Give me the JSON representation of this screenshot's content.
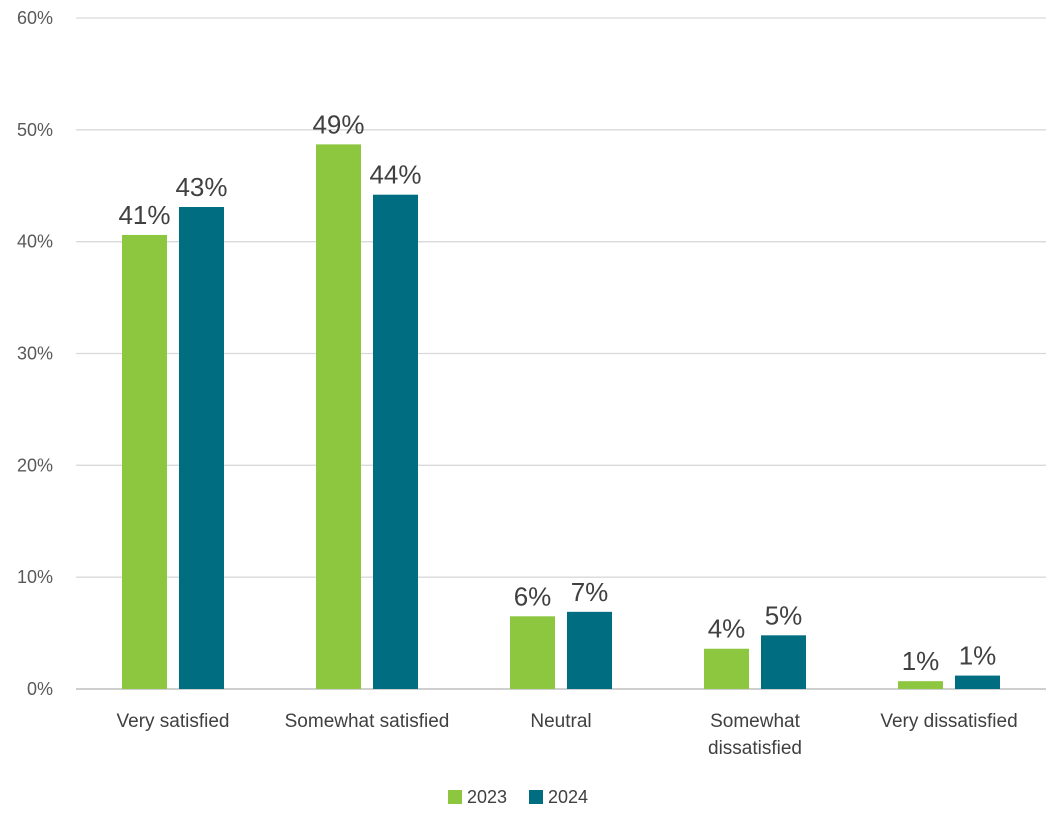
{
  "chart_data": {
    "type": "bar",
    "categories": [
      "Very satisfied",
      "Somewhat satisfied",
      "Neutral",
      "Somewhat dissatisfied",
      "Very dissatisfied"
    ],
    "category_lines": [
      [
        "Very satisfied"
      ],
      [
        "Somewhat satisfied"
      ],
      [
        "Neutral"
      ],
      [
        "Somewhat",
        "dissatisfied"
      ],
      [
        "Very dissatisfied"
      ]
    ],
    "series": [
      {
        "name": "2023",
        "color": "#8dc63f",
        "values": [
          40.6,
          48.7,
          6.5,
          3.6,
          0.7
        ],
        "labels": [
          "41%",
          "49%",
          "6%",
          "4%",
          "1%"
        ]
      },
      {
        "name": "2024",
        "color": "#006e80",
        "values": [
          43.1,
          44.2,
          6.9,
          4.8,
          1.2
        ],
        "labels": [
          "43%",
          "44%",
          "7%",
          "5%",
          "1%"
        ]
      }
    ],
    "ylim": [
      0,
      60
    ],
    "yticks": [
      0,
      10,
      20,
      30,
      40,
      50,
      60
    ],
    "ytick_labels": [
      "0%",
      "10%",
      "20%",
      "30%",
      "40%",
      "50%",
      "60%"
    ],
    "grid": true,
    "legend_position": "bottom",
    "title": "",
    "xlabel": "",
    "ylabel": ""
  }
}
